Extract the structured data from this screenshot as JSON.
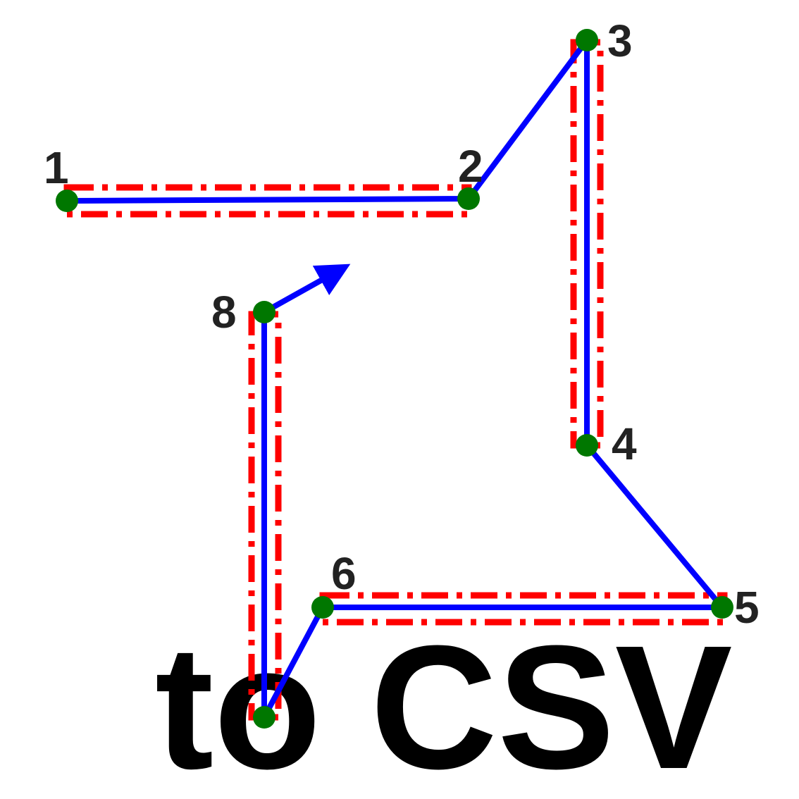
{
  "colors": {
    "background": "#ffffff",
    "path_line": "#0000ff",
    "box_outline": "#ff0000",
    "point_fill": "#007700",
    "label_text": "#222222",
    "caption_text": "#000000"
  },
  "caption": "to CSV",
  "points": [
    {
      "label": "1"
    },
    {
      "label": "2"
    },
    {
      "label": "3"
    },
    {
      "label": "4"
    },
    {
      "label": "5"
    },
    {
      "label": "6"
    },
    {
      "label": ""
    },
    {
      "label": "8"
    }
  ],
  "icons": {
    "direction_arrow": "arrow-head-icon"
  }
}
